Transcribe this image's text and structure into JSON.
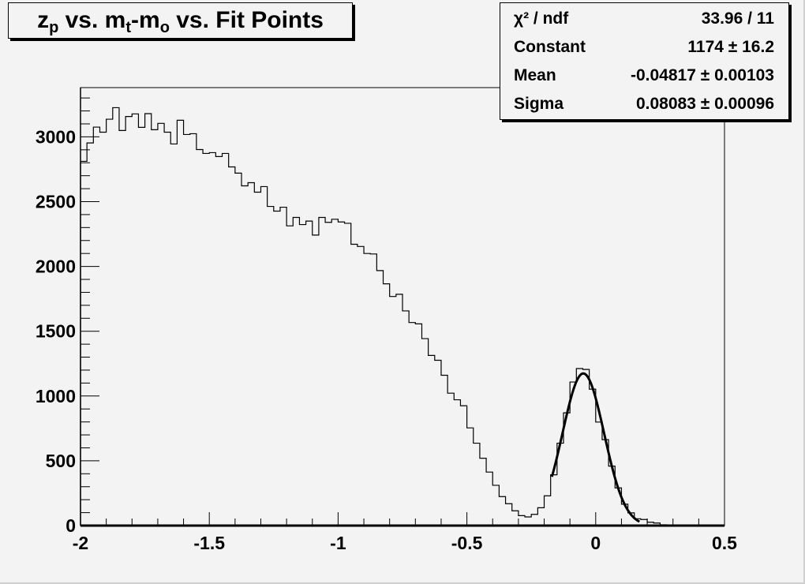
{
  "chart_data": {
    "type": "bar",
    "title": {
      "main": "z",
      "sub1": "p",
      "mid1": " vs. m",
      "sub2": "t",
      "mid2": "-m",
      "sub3": "o",
      "end": " vs. Fit Points"
    },
    "xlim": [
      -2,
      0.5
    ],
    "ylim": [
      0,
      3380
    ],
    "bin_width": 0.025,
    "x_ticks": [
      "-2",
      "-1.5",
      "-1",
      "-0.5",
      "0",
      "0.5"
    ],
    "x_tick_values": [
      -2,
      -1.5,
      -1,
      -0.5,
      0,
      0.5
    ],
    "y_ticks": [
      "0",
      "500",
      "1000",
      "1500",
      "2000",
      "2500",
      "3000"
    ],
    "y_tick_values": [
      0,
      500,
      1000,
      1500,
      2000,
      2500,
      3000
    ],
    "grid": false,
    "values": [
      2811,
      2953,
      3075,
      3036,
      3136,
      3225,
      3049,
      3157,
      3177,
      3073,
      3179,
      3055,
      3104,
      3036,
      2945,
      3128,
      3018,
      3024,
      2902,
      2872,
      2878,
      2848,
      2872,
      2768,
      2720,
      2622,
      2646,
      2573,
      2616,
      2463,
      2427,
      2457,
      2313,
      2378,
      2323,
      2350,
      2242,
      2378,
      2340,
      2364,
      2343,
      2333,
      2171,
      2154,
      2100,
      2096,
      1968,
      1866,
      1768,
      1785,
      1657,
      1567,
      1557,
      1443,
      1313,
      1276,
      1160,
      1022,
      971,
      925,
      754,
      636,
      520,
      413,
      311,
      224,
      169,
      114,
      77,
      67,
      87,
      138,
      230,
      392,
      636,
      870,
      1108,
      1212,
      1205,
      1053,
      799,
      663,
      459,
      291,
      165,
      98,
      53,
      47,
      26,
      20,
      6,
      0,
      0,
      0,
      0,
      0,
      0,
      0,
      0,
      0
    ],
    "fit": {
      "function": "gaus",
      "range": [
        -0.17,
        0.17
      ],
      "constant": 1174,
      "mean": -0.04817,
      "sigma": 0.08083
    },
    "legend_placement": "top-right",
    "stats": [
      {
        "key": "χ² / ndf",
        "value": "33.96 / 11"
      },
      {
        "key": "Constant",
        "value": "1174 ± 16.2"
      },
      {
        "key": "Mean",
        "value": "-0.04817 ± 0.00103"
      },
      {
        "key": "Sigma",
        "value": "0.08083 ± 0.00096"
      }
    ],
    "colors": {
      "background": "#f3f3f3",
      "line": "#000000"
    }
  }
}
